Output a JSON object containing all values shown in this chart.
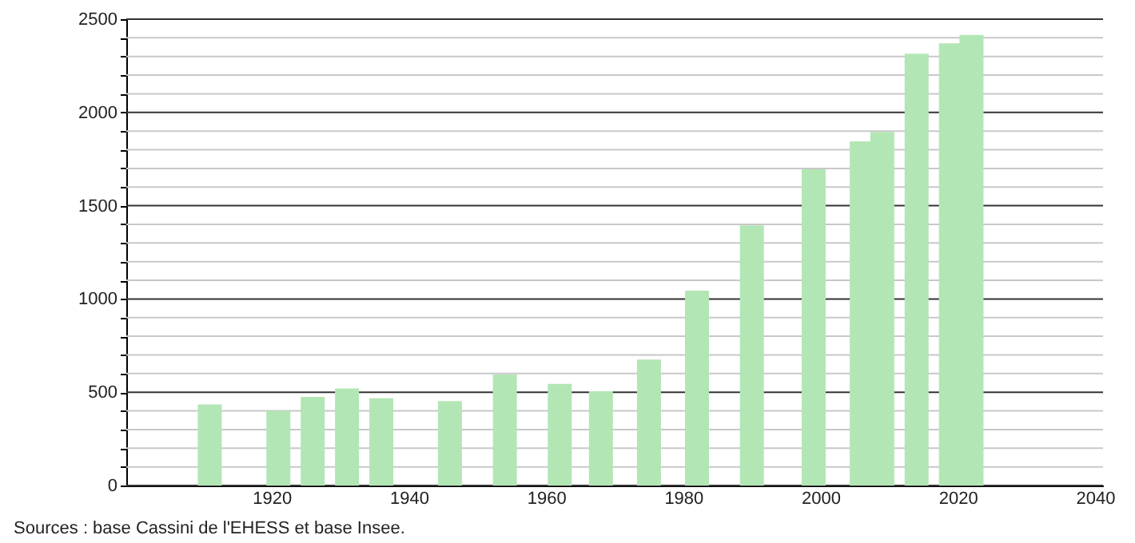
{
  "chart_data": {
    "type": "bar",
    "x": [
      1911,
      1921,
      1926,
      1931,
      1936,
      1946,
      1954,
      1962,
      1968,
      1975,
      1982,
      1990,
      1999,
      2006,
      2009,
      2014,
      2019,
      2022
    ],
    "values": [
      435,
      400,
      475,
      520,
      468,
      453,
      595,
      545,
      505,
      675,
      1045,
      1395,
      1695,
      1845,
      1895,
      2315,
      2370,
      2415
    ],
    "color": "#b3e6b5",
    "xlim": [
      1900,
      2040
    ],
    "xticks": [
      1920,
      1940,
      1960,
      1980,
      2000,
      2020,
      2040
    ],
    "ylim": [
      0,
      2500
    ],
    "yticks": [
      0,
      {
        "value": 100,
        "label": null
      },
      {
        "value": 200,
        "label": null
      },
      {
        "value": 300,
        "label": null
      },
      {
        "value": 400,
        "label": null
      },
      500,
      {
        "value": 600,
        "label": null
      },
      {
        "value": 700,
        "label": null
      },
      {
        "value": 800,
        "label": null
      },
      {
        "value": 900,
        "label": null
      },
      1000,
      {
        "value": 1100,
        "label": null
      },
      {
        "value": 1200,
        "label": null
      },
      {
        "value": 1300,
        "label": null
      },
      {
        "value": 1400,
        "label": null
      },
      1500,
      {
        "value": 1600,
        "label": null
      },
      {
        "value": 1700,
        "label": null
      },
      {
        "value": 1800,
        "label": null
      },
      {
        "value": 1900,
        "label": null
      },
      2000,
      {
        "value": 2100,
        "label": null
      },
      {
        "value": 2200,
        "label": null
      },
      {
        "value": 2300,
        "label": null
      },
      {
        "value": 2400,
        "label": null
      },
      2500
    ],
    "grid": "y",
    "annotations": [
      "Sources : base Cassini de l'EHESS et base Insee."
    ]
  }
}
